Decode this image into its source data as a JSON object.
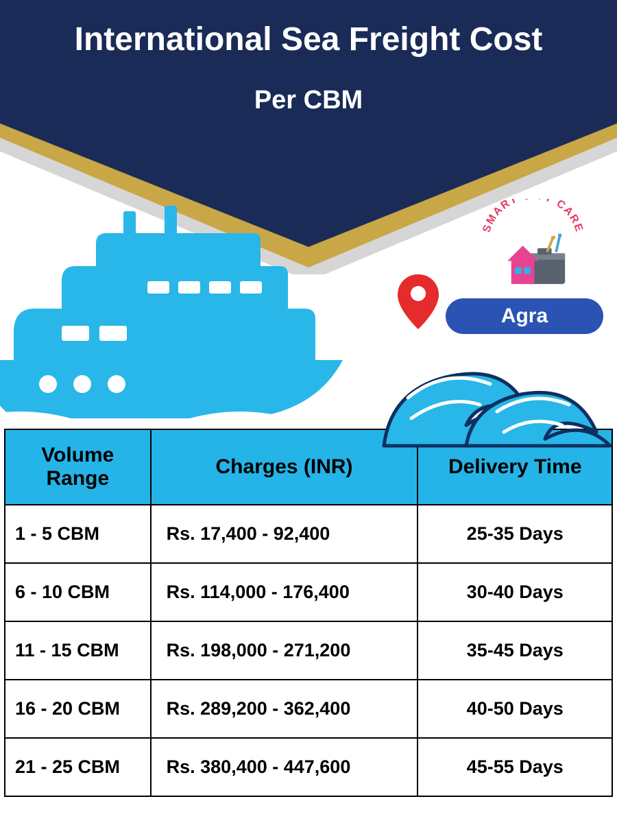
{
  "header": {
    "title": "International Sea Freight Cost",
    "subtitle": "Per CBM",
    "banner_colors": {
      "navy": "#1a2b57",
      "gold": "#c9a646",
      "gray": "#d6d6d6"
    },
    "title_color": "#ffffff",
    "title_fontsize": 48,
    "subtitle_fontsize": 38
  },
  "location": {
    "city": "Agra",
    "pill_bg": "#2a53b3",
    "pill_text_color": "#ffffff",
    "pin_color": "#e52b2b"
  },
  "logo": {
    "text": "SMART CITY CARE",
    "text_color": "#e63960",
    "house_color": "#e84393",
    "box_color": "#5a6270"
  },
  "graphics": {
    "ship_color": "#29b6e8",
    "wave_fill": "#29b6e8",
    "wave_stroke": "#0d3060"
  },
  "table": {
    "type": "table",
    "header_bg": "#25b4e8",
    "border_color": "#000000",
    "cell_bg": "#ffffff",
    "header_fontsize": 30,
    "cell_fontsize": 27,
    "columns": [
      "Volume Range",
      "Charges (INR)",
      "Delivery Time"
    ],
    "column_widths_pct": [
      24,
      44,
      32
    ],
    "rows": [
      {
        "volume": "1 - 5 CBM",
        "charges": "Rs. 17,400 - 92,400",
        "delivery": "25-35 Days"
      },
      {
        "volume": "6 - 10 CBM",
        "charges": "Rs. 114,000 - 176,400",
        "delivery": "30-40 Days"
      },
      {
        "volume": "11 - 15 CBM",
        "charges": "Rs. 198,000 - 271,200",
        "delivery": "35-45 Days"
      },
      {
        "volume": "16 - 20 CBM",
        "charges": "Rs. 289,200 - 362,400",
        "delivery": "40-50 Days"
      },
      {
        "volume": "21 - 25 CBM",
        "charges": "Rs. 380,400 - 447,600",
        "delivery": "45-55 Days"
      }
    ]
  }
}
